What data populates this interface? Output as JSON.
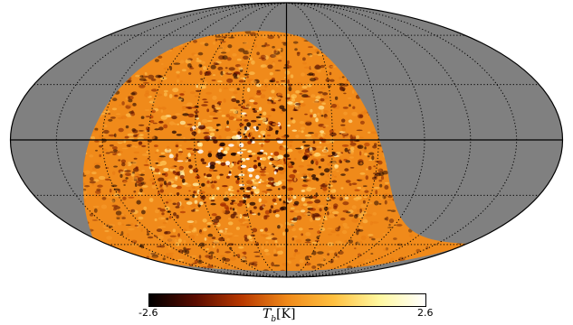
{
  "map": {
    "projection": "mollweide",
    "graticule": "dotted",
    "masked_color": "#808080",
    "field_base_color": "#f08a1a"
  },
  "colorbar": {
    "min_label": "-2.6",
    "max_label": "2.6",
    "symbol": "T",
    "subscript": "b",
    "unit": "[K]",
    "colors": [
      "#000000",
      "#5a0c00",
      "#b83800",
      "#f08a1a",
      "#ffc040",
      "#fff8a0",
      "#ffffff"
    ]
  }
}
